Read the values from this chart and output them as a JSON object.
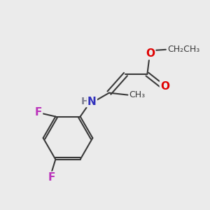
{
  "background_color": "#ebebeb",
  "bond_color": "#3a3a3a",
  "bond_width": 1.5,
  "atom_colors": {
    "O": "#e00000",
    "N": "#3030bb",
    "F": "#bb33bb",
    "H": "#808090",
    "C": "#3a3a3a"
  },
  "font_size": 11,
  "fig_width": 3.0,
  "fig_height": 3.0
}
